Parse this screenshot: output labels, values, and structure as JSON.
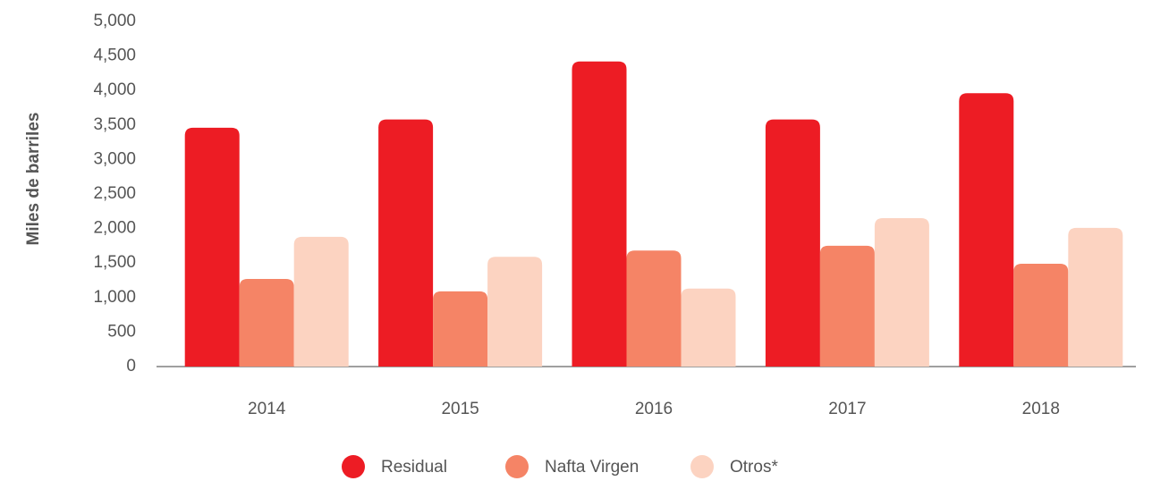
{
  "chart_data": {
    "type": "bar",
    "y_label": "Miles de barriles",
    "categories": [
      "2014",
      "2015",
      "2016",
      "2017",
      "2018"
    ],
    "series": [
      {
        "name": "Residual",
        "color": "#ed1c24",
        "values": [
          3460,
          3580,
          4420,
          3580,
          3960
        ]
      },
      {
        "name": "Nafta Virgen",
        "color": "#f58466",
        "values": [
          1270,
          1090,
          1680,
          1750,
          1490
        ]
      },
      {
        "name": "Otros*",
        "color": "#fcd3c1",
        "values": [
          1880,
          1590,
          1130,
          2150,
          2010
        ]
      }
    ],
    "ylim": [
      0,
      5000
    ],
    "yticks": [
      0,
      500,
      {
        "value": 1000,
        "label": "1,000"
      },
      {
        "value": 1500,
        "label": "1,500"
      },
      {
        "value": 2000,
        "label": "2,000"
      },
      {
        "value": 2500,
        "label": "2,500"
      },
      {
        "value": 3000,
        "label": "3,000"
      },
      {
        "value": 3500,
        "label": "3,500"
      },
      {
        "value": 4000,
        "label": "4,000"
      },
      {
        "value": 4500,
        "label": "4,500"
      },
      {
        "value": 5000,
        "label": "5,000"
      }
    ],
    "grid": false,
    "legend": "bottom"
  }
}
